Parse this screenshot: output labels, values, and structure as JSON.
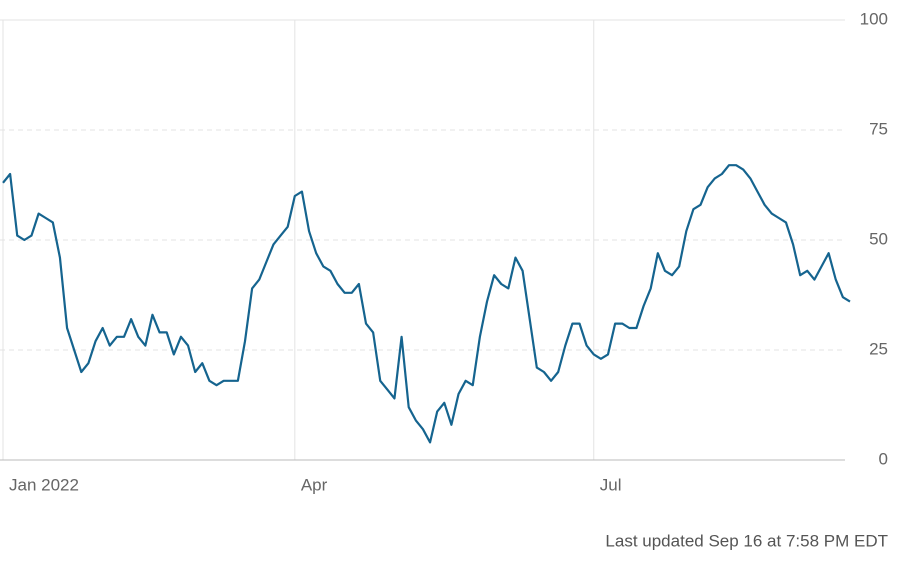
{
  "chart_data": {
    "type": "line",
    "categories": [
      "Jan 2022",
      null,
      null,
      null,
      null,
      null,
      null,
      null,
      null,
      null,
      null,
      null,
      null,
      null,
      null,
      null,
      null,
      null,
      null,
      null,
      null,
      null,
      null,
      null,
      null,
      null,
      null,
      null,
      null,
      null,
      null,
      null,
      null,
      null,
      null,
      null,
      null,
      null,
      null,
      null,
      null,
      "Apr",
      null,
      null,
      null,
      null,
      null,
      null,
      null,
      null,
      null,
      null,
      null,
      null,
      null,
      null,
      null,
      null,
      null,
      null,
      null,
      null,
      null,
      null,
      null,
      null,
      null,
      null,
      null,
      null,
      null,
      null,
      null,
      null,
      null,
      null,
      null,
      null,
      null,
      null,
      null,
      null,
      null,
      "Jul",
      null,
      null,
      null,
      null,
      null,
      null,
      null,
      null,
      null,
      null,
      null,
      null,
      null,
      null,
      null,
      null,
      null,
      null,
      null,
      null,
      null,
      null,
      null,
      null,
      null,
      null,
      null,
      null,
      null,
      null,
      null,
      null,
      null,
      null,
      null,
      null
    ],
    "values": [
      63,
      65,
      51,
      50,
      51,
      56,
      55,
      54,
      46,
      30,
      25,
      20,
      22,
      27,
      30,
      26,
      28,
      28,
      32,
      28,
      26,
      33,
      29,
      29,
      24,
      28,
      26,
      20,
      22,
      18,
      17,
      18,
      18,
      18,
      27,
      39,
      41,
      45,
      49,
      51,
      53,
      60,
      61,
      52,
      47,
      44,
      43,
      40,
      38,
      38,
      40,
      31,
      29,
      18,
      16,
      14,
      28,
      12,
      9,
      7,
      4,
      11,
      13,
      8,
      15,
      18,
      17,
      28,
      36,
      42,
      40,
      39,
      46,
      43,
      32,
      21,
      20,
      18,
      20,
      26,
      31,
      31,
      26,
      24,
      23,
      24,
      31,
      31,
      30,
      30,
      35,
      39,
      47,
      43,
      42,
      44,
      52,
      57,
      58,
      62,
      64,
      65,
      67,
      67,
      66,
      64,
      61,
      58,
      56,
      55,
      54,
      49,
      42,
      43,
      41,
      44,
      47,
      41,
      37,
      36
    ],
    "color": "#15648f",
    "ylim": [
      0,
      100
    ],
    "yticks": [
      0,
      25,
      50,
      75,
      100
    ],
    "grid": true,
    "footnote": "Last updated Sep 16 at 7:58 PM EDT"
  }
}
